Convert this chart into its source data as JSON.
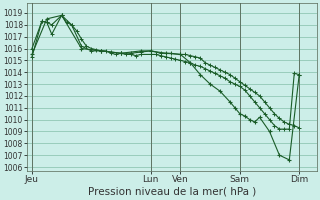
{
  "background_color": "#cceee8",
  "plot_bg_color": "#cceee8",
  "grid_color": "#99ccbb",
  "line_color": "#1a5c28",
  "ylabel_ticks": [
    1006,
    1007,
    1008,
    1009,
    1010,
    1011,
    1012,
    1013,
    1014,
    1015,
    1016,
    1017,
    1018,
    1019
  ],
  "ylim": [
    1005.7,
    1019.8
  ],
  "xlabel": "Pression niveau de la mer( hPa )",
  "x_tick_labels": [
    "Jeu",
    "Lun",
    "Ven",
    "Sam",
    "Dim"
  ],
  "x_tick_positions": [
    0,
    48,
    60,
    84,
    108
  ],
  "xlim": [
    -2,
    115
  ],
  "series1_x": [
    0,
    4,
    6,
    8,
    12,
    14,
    16,
    18,
    20,
    22,
    24,
    26,
    28,
    30,
    32,
    34,
    36,
    38,
    40,
    42,
    44,
    48,
    50,
    52,
    54,
    56,
    58,
    60,
    62,
    64,
    66,
    68,
    70,
    72,
    74,
    76,
    78,
    80,
    82,
    84,
    86,
    88,
    90,
    92,
    94,
    96,
    98,
    100,
    102,
    104,
    106,
    108
  ],
  "series1_y": [
    1015.3,
    1018.3,
    1018.2,
    1017.2,
    1018.8,
    1018.2,
    1018.0,
    1017.5,
    1016.8,
    1016.2,
    1016.0,
    1015.9,
    1015.8,
    1015.8,
    1015.6,
    1015.5,
    1015.6,
    1015.5,
    1015.5,
    1015.4,
    1015.5,
    1015.5,
    1015.5,
    1015.4,
    1015.3,
    1015.2,
    1015.1,
    1015.0,
    1014.9,
    1014.8,
    1014.6,
    1014.5,
    1014.3,
    1014.1,
    1013.9,
    1013.7,
    1013.5,
    1013.2,
    1013.0,
    1012.8,
    1012.5,
    1012.0,
    1011.5,
    1011.0,
    1010.5,
    1010.0,
    1009.5,
    1009.2,
    1009.2,
    1009.2,
    1013.9,
    1013.8
  ],
  "series2_x": [
    0,
    4,
    6,
    8,
    12,
    16,
    20,
    24,
    28,
    32,
    36,
    40,
    44,
    48,
    52,
    56,
    60,
    62,
    64,
    66,
    68,
    70,
    72,
    74,
    76,
    78,
    80,
    82,
    84,
    86,
    88,
    90,
    92,
    94,
    96,
    98,
    100,
    102,
    104,
    106,
    108
  ],
  "series2_y": [
    1016.0,
    1018.3,
    1018.2,
    1018.0,
    1018.8,
    1018.0,
    1016.2,
    1015.8,
    1015.8,
    1015.7,
    1015.6,
    1015.6,
    1015.7,
    1015.8,
    1015.6,
    1015.6,
    1015.5,
    1015.5,
    1015.4,
    1015.3,
    1015.2,
    1014.8,
    1014.6,
    1014.4,
    1014.2,
    1014.0,
    1013.8,
    1013.5,
    1013.2,
    1012.9,
    1012.6,
    1012.3,
    1012.0,
    1011.5,
    1011.0,
    1010.5,
    1010.1,
    1009.8,
    1009.6,
    1009.5,
    1009.3
  ],
  "series3_x": [
    0,
    6,
    12,
    20,
    28,
    36,
    44,
    48,
    54,
    60,
    64,
    68,
    72,
    76,
    80,
    82,
    84,
    86,
    88,
    90,
    92,
    96,
    100,
    104,
    108
  ],
  "series3_y": [
    1015.5,
    1018.5,
    1018.8,
    1016.0,
    1015.8,
    1015.6,
    1015.8,
    1015.8,
    1015.6,
    1015.5,
    1014.8,
    1013.8,
    1013.0,
    1012.4,
    1011.5,
    1011.0,
    1010.5,
    1010.3,
    1010.0,
    1009.8,
    1010.2,
    1009.0,
    1007.0,
    1006.6,
    1013.8
  ],
  "vline_color": "#556655",
  "spine_color": "#556655",
  "tick_label_color": "#333333",
  "xlabel_fontsize": 7.5,
  "ytick_fontsize": 5.5,
  "xtick_fontsize": 6.5
}
